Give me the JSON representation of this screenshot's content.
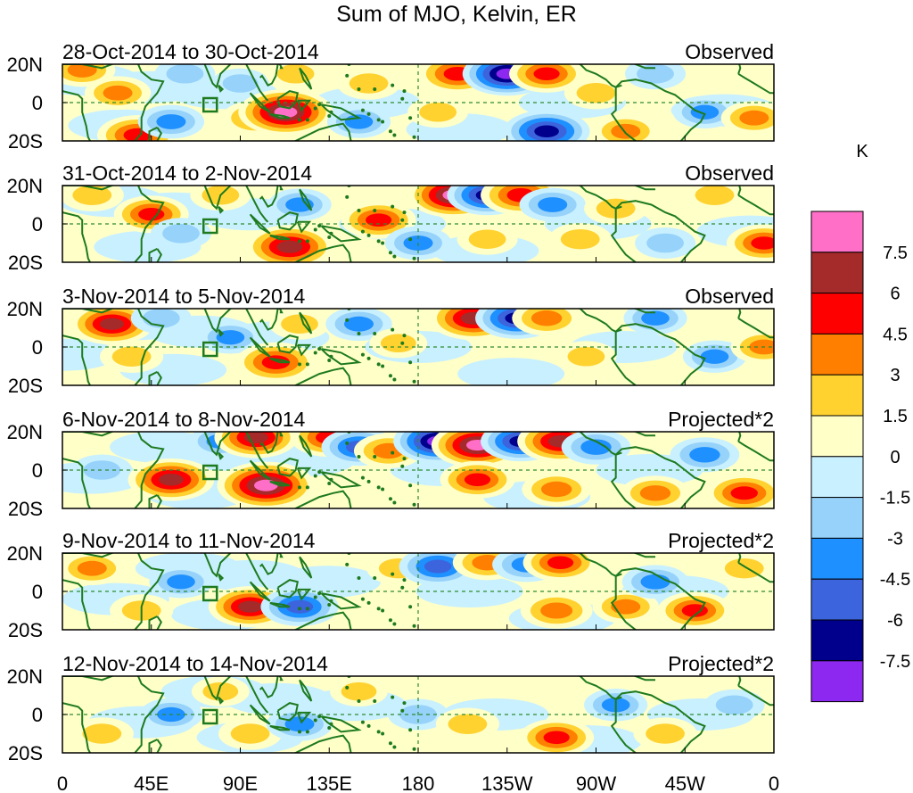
{
  "chart_data": {
    "type": "heatmap",
    "title": "Sum of MJO, Kelvin, ER",
    "x_ticks": [
      "0",
      "45E",
      "90E",
      "135E",
      "180",
      "135W",
      "90W",
      "45W",
      "0"
    ],
    "y_ticks": [
      "20N",
      "0",
      "20S"
    ],
    "xlim": [
      0,
      360
    ],
    "ylim": [
      -20,
      20
    ],
    "colorbar": {
      "unit": "K",
      "levels": [
        "7.5",
        "6",
        "4.5",
        "3",
        "1.5",
        "0",
        "-1.5",
        "-3",
        "-4.5",
        "-6",
        "-7.5"
      ],
      "colors": [
        "#ff6ec7",
        "#a52a2a",
        "#ff0000",
        "#ff7f00",
        "#ffd230",
        "#ffffc8",
        "#c8f0ff",
        "#96d2fa",
        "#1e90ff",
        "#3c64dc",
        "#00008c",
        "#8c28f0"
      ]
    },
    "panels": [
      {
        "dates": "28-Oct-2014 to 30-Oct-2014",
        "kind": "Observed",
        "features": [
          {
            "lon": 10,
            "lat": 17,
            "v": 3.5
          },
          {
            "lon": 28,
            "lat": 5,
            "v": 3.5
          },
          {
            "lon": 38,
            "lat": -17,
            "v": 6
          },
          {
            "lon": 55,
            "lat": -10,
            "v": -3.5
          },
          {
            "lon": 62,
            "lat": 15,
            "v": -2.5
          },
          {
            "lon": 90,
            "lat": 10,
            "v": -2
          },
          {
            "lon": 98,
            "lat": -8,
            "v": 4
          },
          {
            "lon": 113,
            "lat": -5,
            "v": 8.5
          },
          {
            "lon": 118,
            "lat": 15,
            "v": 2.5
          },
          {
            "lon": 150,
            "lat": -10,
            "v": -3
          },
          {
            "lon": 155,
            "lat": 10,
            "v": 3
          },
          {
            "lon": 190,
            "lat": -5,
            "v": 2.5
          },
          {
            "lon": 200,
            "lat": 15,
            "v": 6
          },
          {
            "lon": 225,
            "lat": 15,
            "v": -7.5
          },
          {
            "lon": 245,
            "lat": 15,
            "v": 5
          },
          {
            "lon": 245,
            "lat": -15,
            "v": -7
          },
          {
            "lon": 270,
            "lat": 5,
            "v": 3
          },
          {
            "lon": 285,
            "lat": -15,
            "v": 3.5
          },
          {
            "lon": 300,
            "lat": 15,
            "v": -2.5
          },
          {
            "lon": 325,
            "lat": -5,
            "v": -3
          },
          {
            "lon": 350,
            "lat": -8,
            "v": 3.5
          }
        ]
      },
      {
        "dates": "31-Oct-2014 to 2-Nov-2014",
        "kind": "Observed",
        "features": [
          {
            "lon": 15,
            "lat": 15,
            "v": 3
          },
          {
            "lon": 45,
            "lat": 5,
            "v": 5
          },
          {
            "lon": 60,
            "lat": -5,
            "v": -2.5
          },
          {
            "lon": 80,
            "lat": 15,
            "v": 2.5
          },
          {
            "lon": 115,
            "lat": -12,
            "v": 7.5
          },
          {
            "lon": 120,
            "lat": 10,
            "v": -3
          },
          {
            "lon": 160,
            "lat": 2,
            "v": 5
          },
          {
            "lon": 180,
            "lat": -10,
            "v": -3.5
          },
          {
            "lon": 198,
            "lat": 15,
            "v": 8
          },
          {
            "lon": 215,
            "lat": 15,
            "v": -6
          },
          {
            "lon": 232,
            "lat": 15,
            "v": 6
          },
          {
            "lon": 215,
            "lat": -8,
            "v": 2.5
          },
          {
            "lon": 248,
            "lat": 10,
            "v": -3.5
          },
          {
            "lon": 262,
            "lat": -8,
            "v": 3
          },
          {
            "lon": 280,
            "lat": 8,
            "v": 3
          },
          {
            "lon": 305,
            "lat": -10,
            "v": -2.5
          },
          {
            "lon": 330,
            "lat": 15,
            "v": 3
          },
          {
            "lon": 355,
            "lat": -10,
            "v": 5
          }
        ]
      },
      {
        "dates": "3-Nov-2014 to 5-Nov-2014",
        "kind": "Observed",
        "features": [
          {
            "lon": 25,
            "lat": 12,
            "v": 6.5
          },
          {
            "lon": 50,
            "lat": 15,
            "v": -2.5
          },
          {
            "lon": 35,
            "lat": -5,
            "v": 3
          },
          {
            "lon": 85,
            "lat": 5,
            "v": -3
          },
          {
            "lon": 108,
            "lat": -8,
            "v": 6
          },
          {
            "lon": 120,
            "lat": 12,
            "v": 2.5
          },
          {
            "lon": 150,
            "lat": 12,
            "v": -3.5
          },
          {
            "lon": 170,
            "lat": 2,
            "v": 2
          },
          {
            "lon": 208,
            "lat": 15,
            "v": 7.5
          },
          {
            "lon": 230,
            "lat": 15,
            "v": -6.5
          },
          {
            "lon": 245,
            "lat": 15,
            "v": 4
          },
          {
            "lon": 265,
            "lat": -5,
            "v": 2.5
          },
          {
            "lon": 300,
            "lat": 15,
            "v": -3
          },
          {
            "lon": 330,
            "lat": -5,
            "v": -3
          },
          {
            "lon": 355,
            "lat": 0,
            "v": 3.5
          }
        ]
      },
      {
        "dates": "6-Nov-2014 to 8-Nov-2014",
        "kind": "Projected*2",
        "features": [
          {
            "lon": 20,
            "lat": 0,
            "v": -2.5
          },
          {
            "lon": 55,
            "lat": -5,
            "v": 7
          },
          {
            "lon": 80,
            "lat": 15,
            "v": -3
          },
          {
            "lon": 98,
            "lat": 17,
            "v": 6.5
          },
          {
            "lon": 103,
            "lat": -8,
            "v": 9
          },
          {
            "lon": 135,
            "lat": 17,
            "v": 5.5
          },
          {
            "lon": 150,
            "lat": 12,
            "v": -5
          },
          {
            "lon": 165,
            "lat": 10,
            "v": 4
          },
          {
            "lon": 190,
            "lat": 15,
            "v": -7.5
          },
          {
            "lon": 210,
            "lat": 13,
            "v": 8
          },
          {
            "lon": 232,
            "lat": 15,
            "v": -6
          },
          {
            "lon": 252,
            "lat": 15,
            "v": 7
          },
          {
            "lon": 270,
            "lat": 12,
            "v": -4
          },
          {
            "lon": 210,
            "lat": -5,
            "v": 5
          },
          {
            "lon": 250,
            "lat": -10,
            "v": 4
          },
          {
            "lon": 300,
            "lat": -12,
            "v": 4
          },
          {
            "lon": 325,
            "lat": 8,
            "v": -4
          },
          {
            "lon": 345,
            "lat": -12,
            "v": 5.5
          }
        ]
      },
      {
        "dates": "9-Nov-2014 to 11-Nov-2014",
        "kind": "Projected*2",
        "features": [
          {
            "lon": 15,
            "lat": 12,
            "v": 3.5
          },
          {
            "lon": 40,
            "lat": -10,
            "v": 3
          },
          {
            "lon": 60,
            "lat": 5,
            "v": -3
          },
          {
            "lon": 95,
            "lat": -8,
            "v": 6.5
          },
          {
            "lon": 120,
            "lat": -8,
            "v": -5.5
          },
          {
            "lon": 170,
            "lat": 12,
            "v": 3
          },
          {
            "lon": 190,
            "lat": 13,
            "v": -5.5
          },
          {
            "lon": 215,
            "lat": 15,
            "v": 4
          },
          {
            "lon": 235,
            "lat": 14,
            "v": -4
          },
          {
            "lon": 252,
            "lat": 15,
            "v": 5
          },
          {
            "lon": 250,
            "lat": -10,
            "v": 4.5
          },
          {
            "lon": 285,
            "lat": -8,
            "v": 3.5
          },
          {
            "lon": 300,
            "lat": 5,
            "v": -3.5
          },
          {
            "lon": 320,
            "lat": -10,
            "v": 5
          },
          {
            "lon": 345,
            "lat": 12,
            "v": 3
          }
        ]
      },
      {
        "dates": "12-Nov-2014 to 14-Nov-2014",
        "kind": "Projected*2",
        "features": [
          {
            "lon": 20,
            "lat": -10,
            "v": 3
          },
          {
            "lon": 55,
            "lat": 0,
            "v": -3
          },
          {
            "lon": 80,
            "lat": 12,
            "v": 2
          },
          {
            "lon": 95,
            "lat": -10,
            "v": 3
          },
          {
            "lon": 120,
            "lat": -5,
            "v": -3.5
          },
          {
            "lon": 150,
            "lat": 12,
            "v": 2
          },
          {
            "lon": 180,
            "lat": 0,
            "v": -2.5
          },
          {
            "lon": 205,
            "lat": -5,
            "v": 3
          },
          {
            "lon": 250,
            "lat": -12,
            "v": 5
          },
          {
            "lon": 280,
            "lat": 5,
            "v": -3
          },
          {
            "lon": 305,
            "lat": -10,
            "v": 3
          },
          {
            "lon": 340,
            "lat": 5,
            "v": -2.5
          }
        ]
      }
    ]
  }
}
